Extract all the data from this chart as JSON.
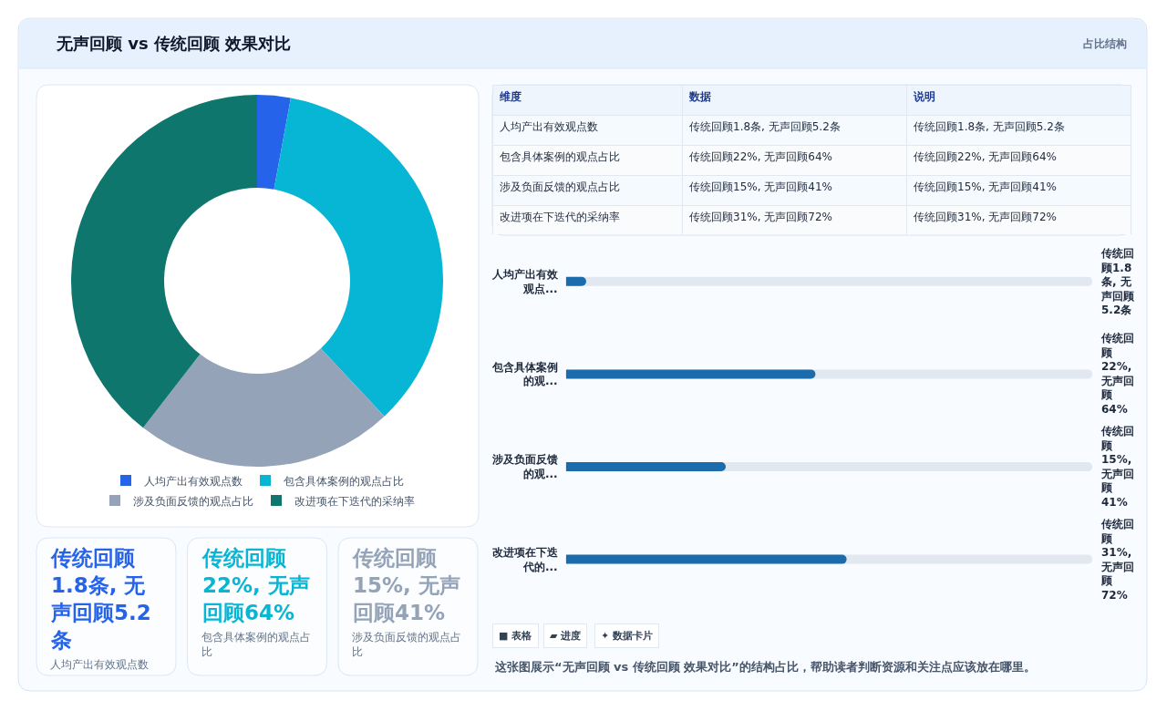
{
  "chart_data": [
    {
      "type": "donut",
      "title": "无声回顾 vs 传统回顾 效果对比",
      "annotations": [
        "占比结构"
      ],
      "categories": [
        "人均产出有效观点数",
        "包含具体案例的观点占比",
        "涉及负面反馈的观点占比",
        "改进项在下迭代的采纳率"
      ],
      "values": [
        2.9,
        35.1,
        22.5,
        39.5
      ],
      "colors": [
        "#2563eb",
        "#06b6d4",
        "#94a3b8",
        "#0f766e"
      ],
      "legend": "bottom"
    },
    {
      "type": "other",
      "categories": [
        "维度",
        "数据",
        "说明"
      ],
      "y_categories": [
        "人均产出有效观点数",
        "包含具体案例的观点占比",
        "涉及负面反馈的观点占比",
        "改进项在下迭代的采纳率"
      ],
      "cell_labels": [
        [
          "传统回顾1.8条, 无声回顾5.2条",
          "传统回顾1.8条, 无声回顾5.2条"
        ],
        [
          "传统回顾22%, 无声回顾64%",
          "传统回顾22%, 无声回顾64%"
        ],
        [
          "传统回顾15%, 无声回顾41%",
          "传统回顾15%, 无声回顾41%"
        ],
        [
          "传统回顾31%, 无声回顾72%",
          "传统回顾31%, 无声回顾72%"
        ]
      ]
    },
    {
      "type": "bar",
      "orientation": "horizontal",
      "categories": [
        "人均产出有效观点...",
        "包含具体案例的观...",
        "涉及负面反馈的观...",
        "改进项在下迭代的..."
      ],
      "values": [
        5.2,
        64,
        41,
        72
      ],
      "xlim": [
        0,
        135
      ],
      "tick_labels": "y",
      "color": "#1a6cac",
      "value_labels": [
        "传统回顾1.8条, 无声回顾5.2条",
        "传统回顾22%, 无声回顾64%",
        "传统回顾15%, 无声回顾41%",
        "传统回顾31%, 无声回顾72%"
      ]
    },
    {
      "type": "other",
      "categories": [
        "人均产出有效观点数",
        "包含具体案例的观点占比",
        "涉及负面反馈的观点占比"
      ],
      "value_labels": [
        "传统回顾1.8条, 无声回顾5.2条",
        "传统回顾22%, 无声回顾64%",
        "传统回顾15%, 无声回顾41%"
      ]
    },
    {
      "type": "other",
      "annotations": [
        "■ 表格",
        "▰ 进度",
        "✦ 数据卡片",
        "这张图展示“无声回顾 vs 传统回顾 效果对比”的结构占比，帮助读者判断资源和关注点应该放在哪里。"
      ]
    }
  ]
}
